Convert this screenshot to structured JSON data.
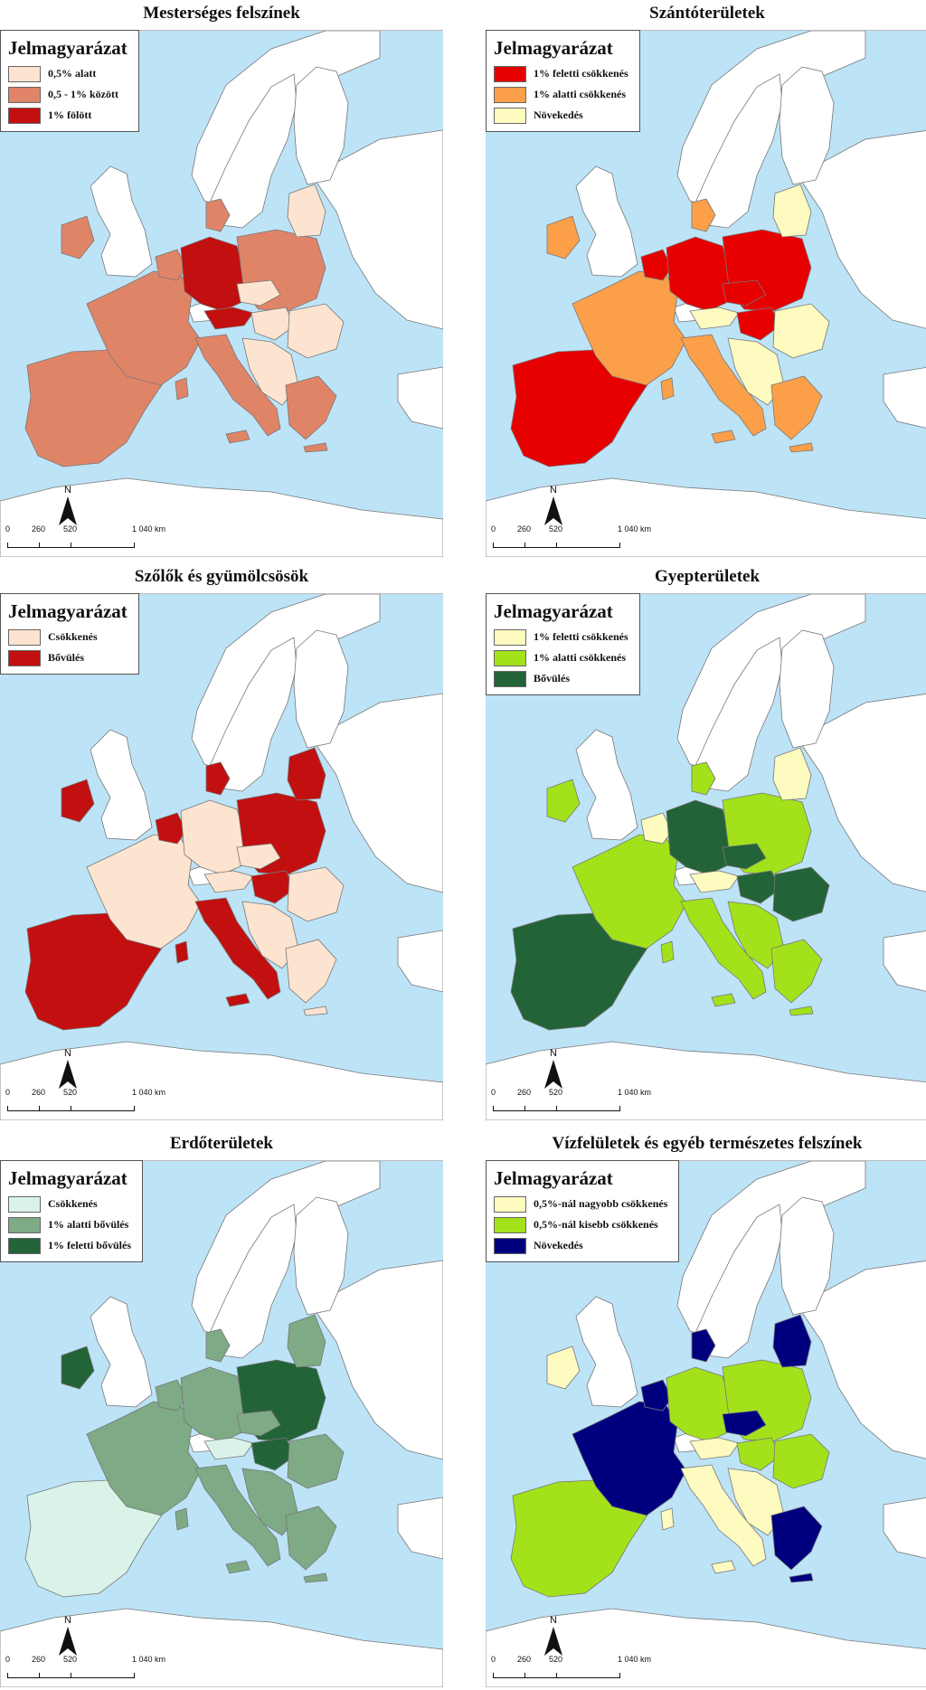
{
  "legend_title": "Jelmagyarázat",
  "scale": {
    "north": "N",
    "ticks": [
      "0",
      "260",
      "520",
      "1 040 km"
    ]
  },
  "colors": {
    "sea": "#bde3f7",
    "nodata": "#ffffff",
    "border": "#777777"
  },
  "panels": [
    {
      "title": "Mesterséges felszínek",
      "legend": [
        {
          "label": "0,5% alatt",
          "color": "#fde4d0"
        },
        {
          "label": "0,5 - 1% között",
          "color": "#e08468"
        },
        {
          "label": "1% fölött",
          "color": "#c20f0f"
        }
      ],
      "regions": {
        "iberia": 1,
        "france": 1,
        "benelux": 1,
        "germany": 2,
        "denmark": 1,
        "poland": 1,
        "czech": 0,
        "austria": 2,
        "hungary": 0,
        "italy": 1,
        "balkans": 0,
        "romania": 0,
        "greece": 1,
        "baltics": 0,
        "ireland": 1,
        "sweden": null,
        "finland": null
      }
    },
    {
      "title": "Szántóterületek",
      "legend": [
        {
          "label": "1% feletti csökkenés",
          "color": "#e60000"
        },
        {
          "label": "1% alatti csökkenés",
          "color": "#fba048"
        },
        {
          "label": "Növekedés",
          "color": "#fefbc0"
        }
      ],
      "regions": {
        "iberia": 0,
        "france": 1,
        "benelux": 0,
        "germany": 0,
        "denmark": 1,
        "poland": 0,
        "czech": 0,
        "austria": 2,
        "hungary": 0,
        "italy": 1,
        "balkans": 2,
        "romania": 2,
        "greece": 1,
        "baltics": 2,
        "ireland": 1,
        "sweden": null,
        "finland": null
      }
    },
    {
      "title": "Szőlők és gyümölcsösök",
      "legend": [
        {
          "label": "Csökkenés",
          "color": "#fde4d0"
        },
        {
          "label": "Bővülés",
          "color": "#c20f0f"
        }
      ],
      "regions": {
        "iberia": 1,
        "france": 0,
        "benelux": 1,
        "germany": 0,
        "denmark": 1,
        "poland": 1,
        "czech": 0,
        "austria": 0,
        "hungary": 1,
        "italy": 1,
        "balkans": 0,
        "romania": 0,
        "greece": 0,
        "baltics": 1,
        "ireland": 1,
        "sweden": null,
        "finland": null
      }
    },
    {
      "title": "Gyepterületek",
      "legend": [
        {
          "label": "1% feletti csökkenés",
          "color": "#fefbc0"
        },
        {
          "label": "1% alatti csökkenés",
          "color": "#a3e21a"
        },
        {
          "label": "Bővülés",
          "color": "#236338"
        }
      ],
      "regions": {
        "iberia": 2,
        "france": 1,
        "benelux": 0,
        "germany": 2,
        "denmark": 1,
        "poland": 1,
        "czech": 2,
        "austria": 0,
        "hungary": 2,
        "italy": 1,
        "balkans": 1,
        "romania": 2,
        "greece": 1,
        "baltics": 0,
        "ireland": 1,
        "sweden": null,
        "finland": null
      }
    },
    {
      "title": "Erdőterületek",
      "legend": [
        {
          "label": "Csökkenés",
          "color": "#d9f3e8"
        },
        {
          "label": "1% alatti bővülés",
          "color": "#7eaa86"
        },
        {
          "label": "1% feletti bővülés",
          "color": "#236338"
        }
      ],
      "regions": {
        "iberia": 0,
        "france": 1,
        "benelux": 1,
        "germany": 1,
        "denmark": 1,
        "poland": 2,
        "czech": 1,
        "austria": 0,
        "hungary": 2,
        "italy": 1,
        "balkans": 1,
        "romania": 1,
        "greece": 1,
        "baltics": 1,
        "ireland": 2,
        "sweden": null,
        "finland": null
      }
    },
    {
      "title": "Vízfelületek és egyéb természetes felszínek",
      "legend": [
        {
          "label": "0,5%-nál nagyobb csökkenés",
          "color": "#fefbc0"
        },
        {
          "label": "0,5%-nál kisebb csökkenés",
          "color": "#a3e21a"
        },
        {
          "label": "Növekedés",
          "color": "#00007f"
        }
      ],
      "regions": {
        "iberia": 1,
        "france": 2,
        "benelux": 2,
        "germany": 1,
        "denmark": 2,
        "poland": 1,
        "czech": 2,
        "austria": 0,
        "hungary": 1,
        "italy": 0,
        "balkans": 0,
        "romania": 1,
        "greece": 2,
        "baltics": 2,
        "ireland": 0,
        "sweden": null,
        "finland": null
      }
    }
  ]
}
